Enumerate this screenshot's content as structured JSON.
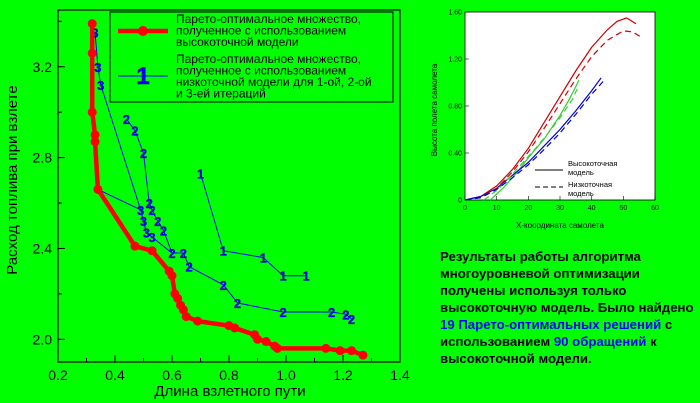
{
  "chart_data": [
    {
      "type": "scatter",
      "xlabel": "Длина взлетного пути",
      "ylabel": "Расход топлива при взлете",
      "xlim": [
        0.2,
        1.4
      ],
      "ylim": [
        1.9,
        3.45
      ],
      "xticks": [
        "0.2",
        "0.4",
        "0.6",
        "0.8",
        "1.0",
        "1.2",
        "1.4"
      ],
      "yticks": [
        "2.0",
        "2.4",
        "2.8",
        "3.2"
      ],
      "grid": false,
      "legend_position": "top-right",
      "series": [
        {
          "name": "Парето-оптимальное множество, полученное с использованием высокоточной модели",
          "color": "#ff0000",
          "points": [
            [
              0.32,
              3.39
            ],
            [
              0.32,
              3.26
            ],
            [
              0.32,
              3.0
            ],
            [
              0.33,
              2.9
            ],
            [
              0.33,
              2.87
            ],
            [
              0.34,
              2.66
            ],
            [
              0.47,
              2.41
            ],
            [
              0.53,
              2.39
            ],
            [
              0.59,
              2.3
            ],
            [
              0.6,
              2.28
            ],
            [
              0.61,
              2.2
            ],
            [
              0.62,
              2.18
            ],
            [
              0.63,
              2.15
            ],
            [
              0.64,
              2.13
            ],
            [
              0.65,
              2.1
            ],
            [
              0.69,
              2.08
            ],
            [
              0.8,
              2.06
            ],
            [
              0.82,
              2.05
            ],
            [
              0.89,
              2.02
            ],
            [
              0.9,
              2.0
            ],
            [
              0.93,
              1.99
            ],
            [
              0.96,
              1.97
            ],
            [
              0.97,
              1.96
            ],
            [
              1.14,
              1.96
            ],
            [
              1.19,
              1.95
            ],
            [
              1.23,
              1.95
            ],
            [
              1.27,
              1.93
            ]
          ]
        },
        {
          "name": "Парето-оптимальное множество, полученное с использованием низкоточной модели для 1-ой, 2-ой и 3-ей итераций",
          "color": "#0000ff",
          "marker_labels_note": "iteration numbers drawn at points",
          "iterations": [
            {
              "label": "1",
              "points": [
                [
                  0.7,
                  2.73
                ],
                [
                  0.78,
                  2.39
                ],
                [
                  0.92,
                  2.36
                ],
                [
                  0.99,
                  2.28
                ],
                [
                  1.07,
                  2.28
                ]
              ]
            },
            {
              "label": "2",
              "points": [
                [
                  0.44,
                  2.97
                ],
                [
                  0.47,
                  2.92
                ],
                [
                  0.5,
                  2.82
                ],
                [
                  0.52,
                  2.6
                ],
                [
                  0.53,
                  2.57
                ],
                [
                  0.55,
                  2.52
                ],
                [
                  0.57,
                  2.48
                ],
                [
                  0.6,
                  2.38
                ],
                [
                  0.64,
                  2.38
                ],
                [
                  0.66,
                  2.32
                ],
                [
                  0.78,
                  2.24
                ],
                [
                  0.83,
                  2.16
                ],
                [
                  0.99,
                  2.12
                ],
                [
                  1.16,
                  2.12
                ],
                [
                  1.21,
                  2.11
                ],
                [
                  1.23,
                  2.09
                ]
              ]
            },
            {
              "label": "3",
              "points": [
                [
                  0.33,
                  3.35
                ],
                [
                  0.34,
                  3.2
                ],
                [
                  0.35,
                  3.12
                ],
                [
                  0.49,
                  2.57
                ],
                [
                  0.5,
                  2.52
                ],
                [
                  0.51,
                  2.47
                ],
                [
                  0.53,
                  2.45
                ]
              ]
            }
          ],
          "back_links": [
            [
              [
                0.34,
                2.66
              ],
              [
                0.49,
                2.57
              ]
            ],
            [
              [
                0.53,
                2.45
              ],
              [
                0.6,
                2.38
              ]
            ],
            [
              [
                1.25,
                1.94
              ],
              [
                1.27,
                1.94
              ]
            ]
          ]
        }
      ]
    },
    {
      "type": "line",
      "xlabel": "X-координата самолета",
      "ylabel": "Высота полета самолета",
      "xlim": [
        0,
        60
      ],
      "ylim": [
        0,
        1.6
      ],
      "xticks": [
        "0",
        "10",
        "20",
        "30",
        "40",
        "50",
        "60"
      ],
      "yticks": [
        "0",
        "0.40",
        "0.80",
        "1.20",
        "1.60"
      ],
      "grid": false,
      "legend_position": "bottom-right",
      "series": [
        {
          "name": "Высокоточная модель",
          "style": "solid",
          "lines": [
            {
              "color": "#cc0000",
              "points": [
                [
                  0,
                  0
                ],
                [
                  5,
                  0.03
                ],
                [
                  10,
                  0.12
                ],
                [
                  15,
                  0.26
                ],
                [
                  20,
                  0.44
                ],
                [
                  25,
                  0.66
                ],
                [
                  30,
                  0.88
                ],
                [
                  35,
                  1.1
                ],
                [
                  40,
                  1.3
                ],
                [
                  45,
                  1.45
                ],
                [
                  48,
                  1.52
                ],
                [
                  51,
                  1.55
                ],
                [
                  54,
                  1.5
                ]
              ]
            },
            {
              "color": "#33cc33",
              "points": [
                [
                  8,
                  0
                ],
                [
                  12,
                  0.1
                ],
                [
                  16,
                  0.22
                ],
                [
                  20,
                  0.36
                ],
                [
                  25,
                  0.52
                ],
                [
                  30,
                  0.72
                ],
                [
                  33,
                  0.86
                ],
                [
                  36,
                  1.02
                ]
              ]
            },
            {
              "color": "#0000cc",
              "points": [
                [
                  0,
                  0
                ],
                [
                  5,
                  0.03
                ],
                [
                  10,
                  0.1
                ],
                [
                  15,
                  0.21
                ],
                [
                  20,
                  0.32
                ],
                [
                  25,
                  0.46
                ],
                [
                  30,
                  0.6
                ],
                [
                  35,
                  0.76
                ],
                [
                  40,
                  0.93
                ],
                [
                  43,
                  1.04
                ]
              ]
            }
          ]
        },
        {
          "name": "Низкоточная модель",
          "style": "dashed",
          "lines": [
            {
              "color": "#cc0000",
              "points": [
                [
                  0,
                  0
                ],
                [
                  5,
                  0.02
                ],
                [
                  10,
                  0.1
                ],
                [
                  15,
                  0.24
                ],
                [
                  20,
                  0.41
                ],
                [
                  25,
                  0.61
                ],
                [
                  30,
                  0.82
                ],
                [
                  35,
                  1.03
                ],
                [
                  40,
                  1.22
                ],
                [
                  45,
                  1.36
                ],
                [
                  50,
                  1.44
                ],
                [
                  53,
                  1.43
                ],
                [
                  56,
                  1.38
                ]
              ]
            },
            {
              "color": "#33cc33",
              "points": [
                [
                  6,
                  0
                ],
                [
                  10,
                  0.08
                ],
                [
                  14,
                  0.19
                ],
                [
                  18,
                  0.31
                ],
                [
                  22,
                  0.43
                ],
                [
                  26,
                  0.56
                ],
                [
                  30,
                  0.7
                ],
                [
                  34,
                  0.86
                ],
                [
                  36,
                  0.98
                ]
              ]
            },
            {
              "color": "#0000cc",
              "points": [
                [
                  0,
                  0
                ],
                [
                  5,
                  0.02
                ],
                [
                  10,
                  0.09
                ],
                [
                  15,
                  0.19
                ],
                [
                  20,
                  0.3
                ],
                [
                  25,
                  0.43
                ],
                [
                  30,
                  0.57
                ],
                [
                  35,
                  0.73
                ],
                [
                  40,
                  0.9
                ],
                [
                  44,
                  1.02
                ]
              ]
            }
          ]
        }
      ]
    }
  ],
  "results": {
    "part1": "Результаты работы алгоритма многоуровневой оптимизации получены используя только высокоточную модель. Было найдено ",
    "hl1": "19 Парето-оптимальных решений",
    "part2": " с использованием ",
    "hl2": "90 обращений",
    "part3": " к высокоточной модели."
  }
}
